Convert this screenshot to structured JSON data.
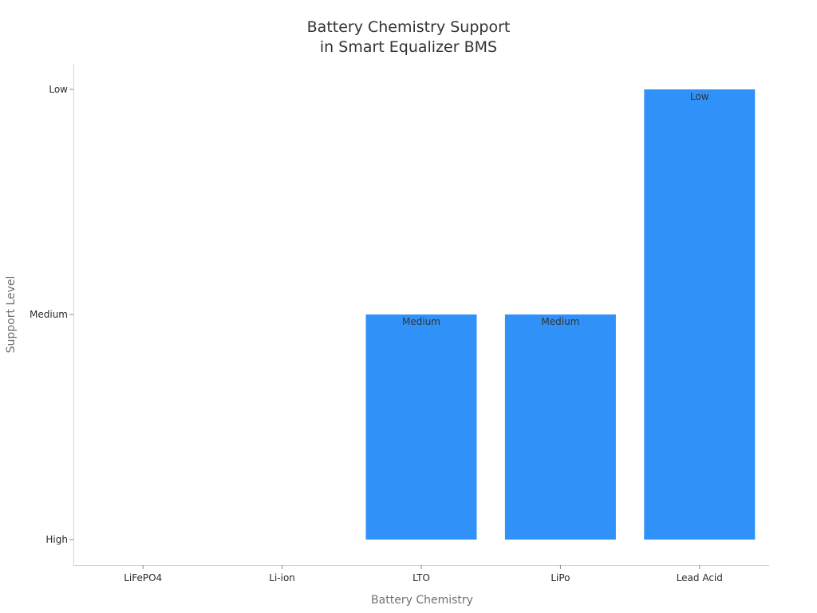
{
  "chart_data": {
    "type": "bar",
    "title": [
      "Battery Chemistry Support",
      "in Smart Equalizer BMS"
    ],
    "xlabel": "Battery Chemistry",
    "ylabel": "Support Level",
    "categories": [
      "LiFePO4",
      "Li-ion",
      "LTO",
      "LiPo",
      "Lead Acid"
    ],
    "y_tick_labels": [
      "High",
      "Medium",
      "Low"
    ],
    "ylim": [
      0,
      2
    ],
    "values": [
      0,
      0,
      1,
      1,
      2
    ],
    "data_labels": [
      "",
      "",
      "Medium",
      "Medium",
      "Low"
    ],
    "bar_color": "#3092f8",
    "grid": false,
    "legend": "none"
  }
}
